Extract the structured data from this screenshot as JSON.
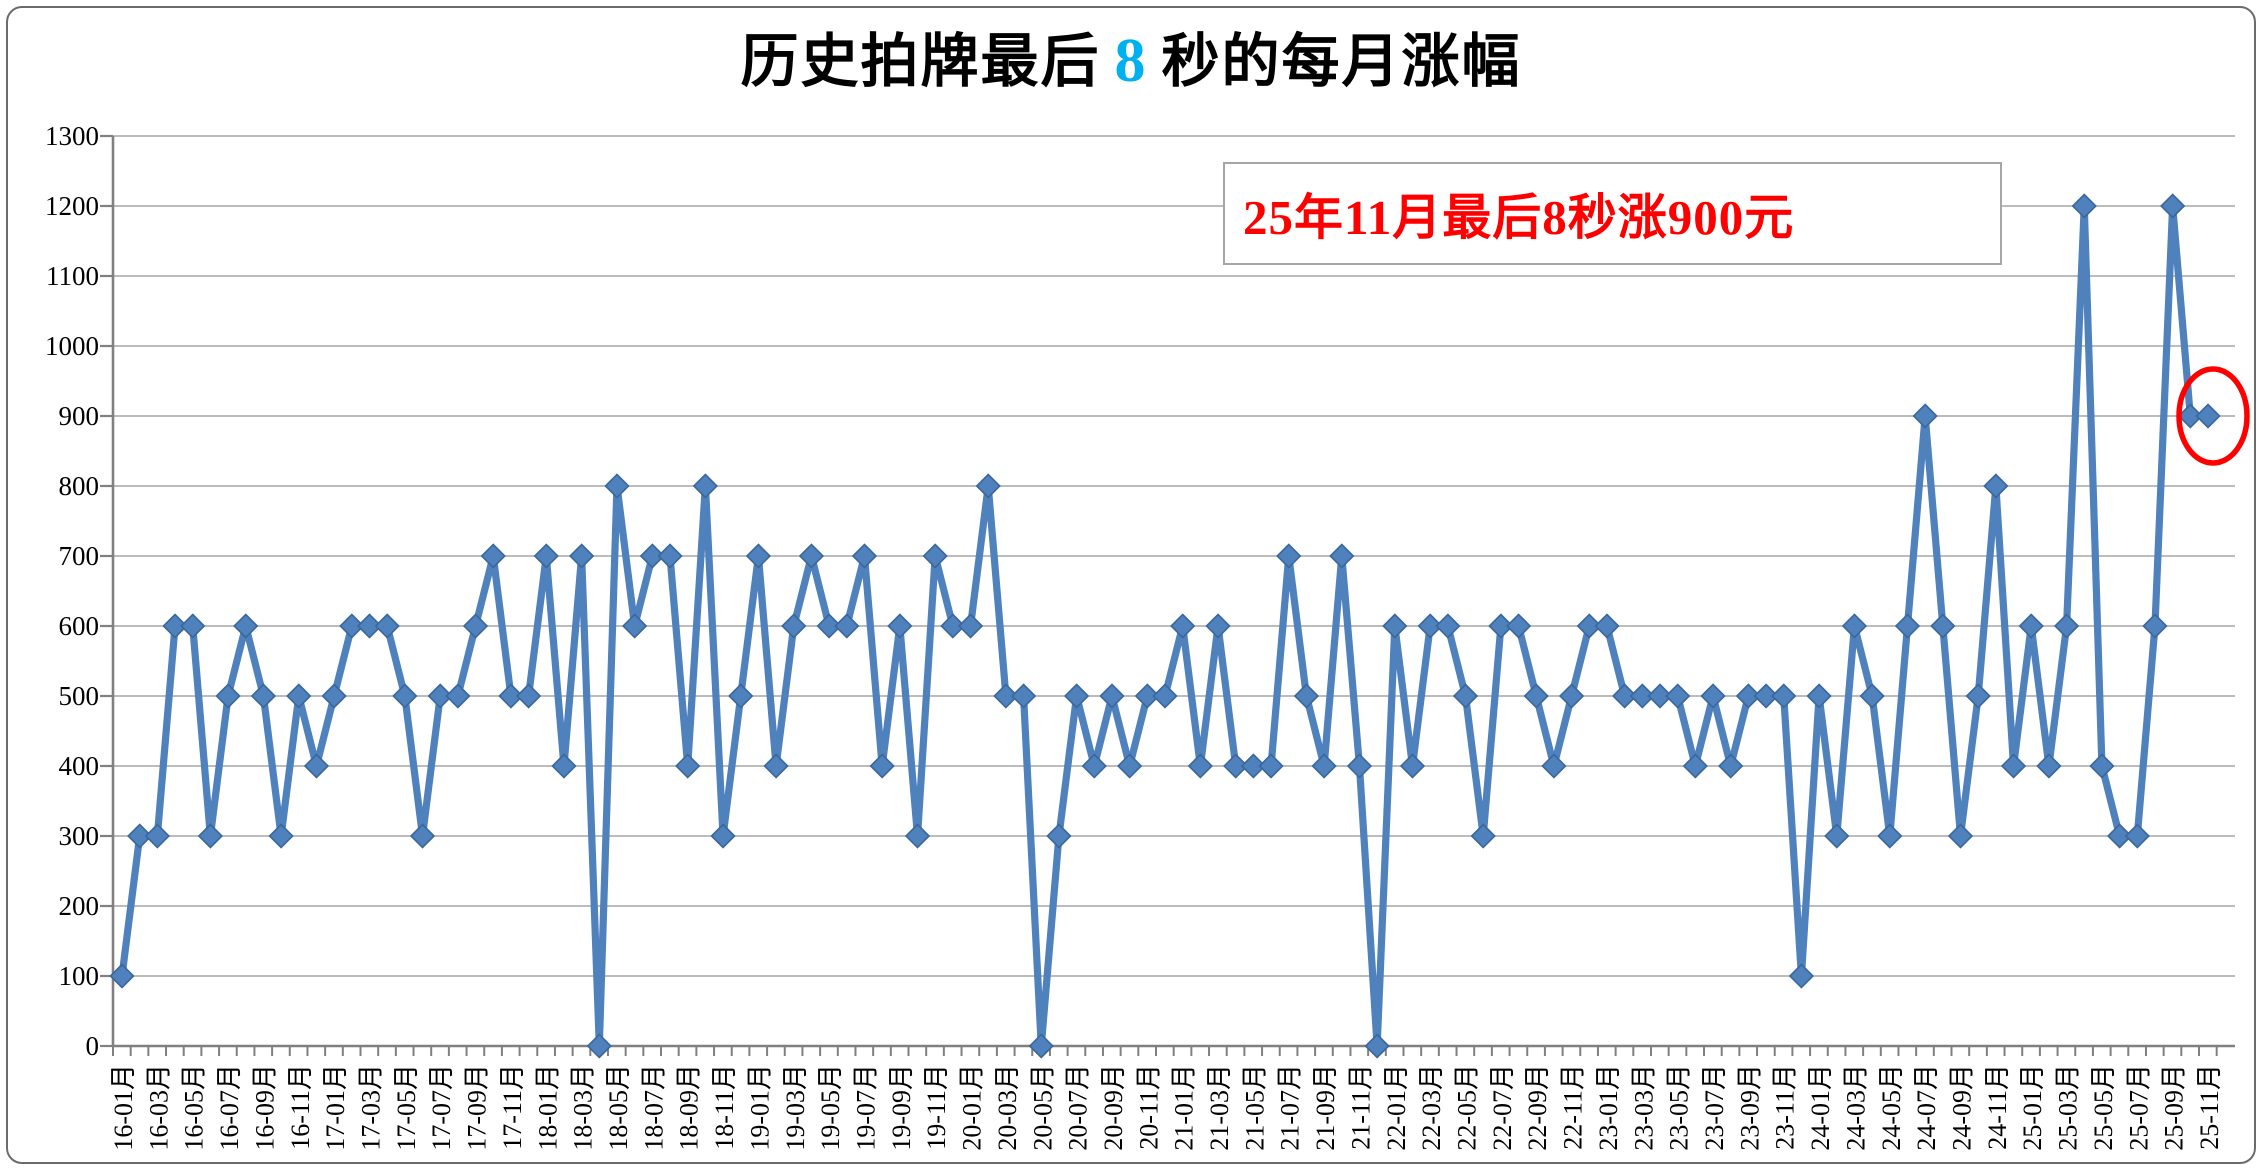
{
  "title": {
    "prefix": "历史拍牌最后",
    "highlight": "8",
    "suffix": "秒的每月涨幅",
    "highlight_color": "#00B0F0"
  },
  "annotation": {
    "text": "25年11月最后8秒涨900元",
    "text_color": "#FF0000",
    "border_color": "#A6A6A6"
  },
  "chart_data": {
    "type": "line",
    "title": "历史拍牌最后 8 秒的每月涨幅",
    "xlabel": "",
    "ylabel": "",
    "ylim": [
      0,
      1300
    ],
    "y_ticks": [
      0,
      100,
      200,
      300,
      400,
      500,
      600,
      700,
      800,
      900,
      1000,
      1100,
      1200,
      1300
    ],
    "grid": true,
    "legend": "none",
    "line_color": "#4F81BD",
    "marker": "diamond",
    "marker_color": "#4F81BD",
    "marker_edge_color": "#3A679C",
    "gridline_color": "#A6A6A6",
    "axis_color": "#808080",
    "x_label_every": 2,
    "x": [
      "16-01月",
      "16-02月",
      "16-03月",
      "16-04月",
      "16-05月",
      "16-06月",
      "16-07月",
      "16-08月",
      "16-09月",
      "16-10月",
      "16-11月",
      "16-12月",
      "17-01月",
      "17-02月",
      "17-03月",
      "17-04月",
      "17-05月",
      "17-06月",
      "17-07月",
      "17-08月",
      "17-09月",
      "17-10月",
      "17-11月",
      "17-12月",
      "18-01月",
      "18-02月",
      "18-03月",
      "18-04月",
      "18-05月",
      "18-06月",
      "18-07月",
      "18-08月",
      "18-09月",
      "18-10月",
      "18-11月",
      "18-12月",
      "19-01月",
      "19-02月",
      "19-03月",
      "19-04月",
      "19-05月",
      "19-06月",
      "19-07月",
      "19-08月",
      "19-09月",
      "19-10月",
      "19-11月",
      "19-12月",
      "20-01月",
      "20-02月",
      "20-03月",
      "20-04月",
      "20-05月",
      "20-06月",
      "20-07月",
      "20-08月",
      "20-09月",
      "20-10月",
      "20-11月",
      "20-12月",
      "21-01月",
      "21-02月",
      "21-03月",
      "21-04月",
      "21-05月",
      "21-06月",
      "21-07月",
      "21-08月",
      "21-09月",
      "21-10月",
      "21-11月",
      "21-12月",
      "22-01月",
      "22-02月",
      "22-03月",
      "22-04月",
      "22-05月",
      "22-06月",
      "22-07月",
      "22-08月",
      "22-09月",
      "22-10月",
      "22-11月",
      "22-12月",
      "23-01月",
      "23-02月",
      "23-03月",
      "23-04月",
      "23-05月",
      "23-06月",
      "23-07月",
      "23-08月",
      "23-09月",
      "23-10月",
      "23-11月",
      "23-12月",
      "24-01月",
      "24-02月",
      "24-03月",
      "24-04月",
      "24-05月",
      "24-06月",
      "24-07月",
      "24-08月",
      "24-09月",
      "24-10月",
      "24-11月",
      "24-12月",
      "25-01月",
      "25-02月",
      "25-03月",
      "25-04月",
      "25-05月",
      "25-06月",
      "25-07月",
      "25-08月",
      "25-09月",
      "25-10月",
      "25-11月"
    ],
    "values": [
      100,
      300,
      300,
      600,
      600,
      300,
      500,
      600,
      500,
      300,
      500,
      400,
      500,
      600,
      600,
      600,
      500,
      300,
      500,
      500,
      600,
      700,
      500,
      500,
      700,
      400,
      700,
      0,
      800,
      600,
      700,
      700,
      400,
      800,
      300,
      500,
      700,
      400,
      600,
      700,
      600,
      600,
      700,
      400,
      600,
      300,
      700,
      600,
      600,
      800,
      500,
      500,
      0,
      300,
      500,
      400,
      500,
      400,
      500,
      500,
      600,
      400,
      600,
      400,
      400,
      400,
      700,
      500,
      400,
      700,
      400,
      0,
      600,
      400,
      600,
      600,
      500,
      300,
      600,
      600,
      500,
      400,
      500,
      600,
      600,
      500,
      500,
      500,
      500,
      400,
      500,
      400,
      500,
      500,
      500,
      100,
      500,
      300,
      600,
      500,
      300,
      600,
      900,
      600,
      300,
      500,
      800,
      400,
      600,
      400,
      600,
      1200,
      400,
      300,
      300,
      600,
      1200,
      900,
      900
    ],
    "highlight_point": {
      "x": "25-11月",
      "value": 900,
      "style": "red-ellipse",
      "color": "#FF0000"
    }
  }
}
